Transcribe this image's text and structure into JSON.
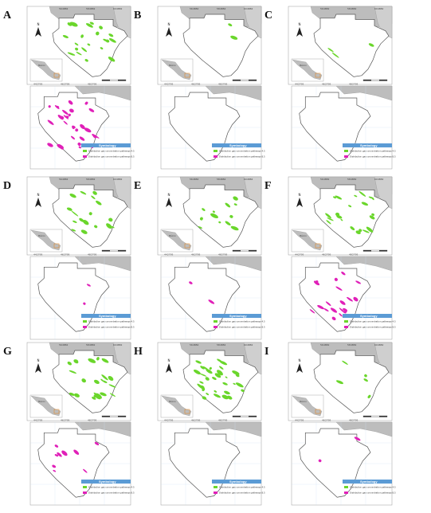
{
  "figure": {
    "colors": {
      "green": "#6ad62b",
      "magenta": "#e020b8",
      "land": "#bdbdbd",
      "outline": "#555555",
      "legend_header": "#5b9bd5"
    },
    "panels": [
      {
        "letter": "A",
        "green_level": 0.35,
        "magenta_level": 0.55
      },
      {
        "letter": "B",
        "green_level": 0.03,
        "magenta_level": 0.0
      },
      {
        "letter": "C",
        "green_level": 0.05,
        "magenta_level": 0.0
      },
      {
        "letter": "D",
        "green_level": 0.3,
        "magenta_level": 0.03
      },
      {
        "letter": "E",
        "green_level": 0.2,
        "magenta_level": 0.03
      },
      {
        "letter": "F",
        "green_level": 0.35,
        "magenta_level": 0.35
      },
      {
        "letter": "G",
        "green_level": 0.4,
        "magenta_level": 0.15
      },
      {
        "letter": "H",
        "green_level": 0.55,
        "magenta_level": 0.0
      },
      {
        "letter": "I",
        "green_level": 0.08,
        "magenta_level": 0.03
      }
    ],
    "upper_coords": [
      "564882",
      "584882",
      "604882"
    ],
    "lower_coords": [
      "442795",
      "462795",
      "482795"
    ],
    "north": "N",
    "country_label": "México",
    "legend": {
      "title": "Symbology",
      "item1": "Distribution gas concentration pathways 4.5",
      "item2": "Distribution gas concentration pathways 8.5"
    }
  }
}
